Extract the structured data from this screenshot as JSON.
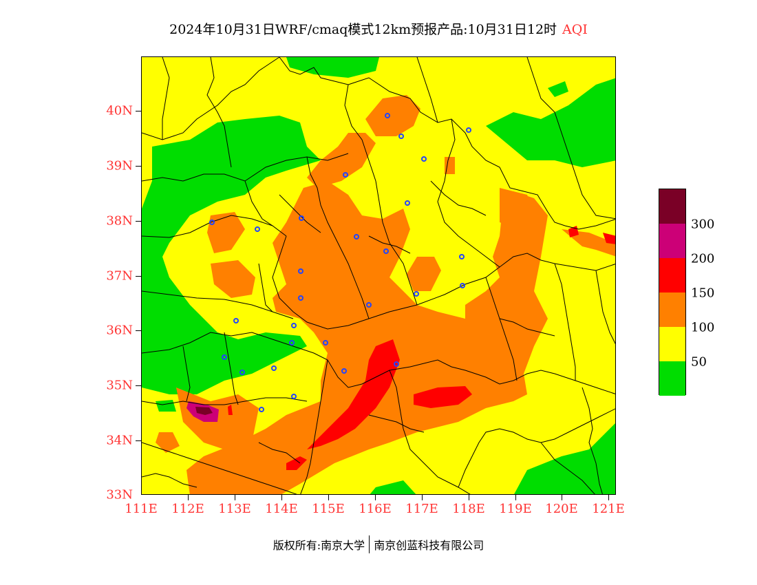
{
  "title": {
    "main": "2024年10月31日WRF/cmaq模式12km预报产品:10月31日12时",
    "variable": "AQI"
  },
  "axes": {
    "x_ticks": [
      "111E",
      "112E",
      "113E",
      "114E",
      "115E",
      "116E",
      "117E",
      "118E",
      "119E",
      "120E",
      "121E"
    ],
    "y_ticks": [
      "40N",
      "39N",
      "38N",
      "37N",
      "36N",
      "35N",
      "34N",
      "33N"
    ],
    "lon_range": [
      111,
      121.2
    ],
    "lat_range": [
      33,
      41
    ]
  },
  "legend": {
    "labels": [
      "300",
      "200",
      "150",
      "100",
      "50"
    ],
    "colors": [
      "#7a0026",
      "#cc0077",
      "#ff0000",
      "#ff8000",
      "#ffff00",
      "#00dd00"
    ]
  },
  "map_colors": {
    "good": "#00dd00",
    "moderate": "#ffff00",
    "unhealthy_sensitive": "#ff8000",
    "unhealthy": "#ff0000",
    "very_unhealthy": "#cc0077",
    "hazardous": "#7a0026",
    "boundaries": "#000000",
    "cities": "#2244ff"
  },
  "footer": {
    "copyright": "版权所有:南京大学",
    "company": "南京创蓝科技有限公司"
  }
}
